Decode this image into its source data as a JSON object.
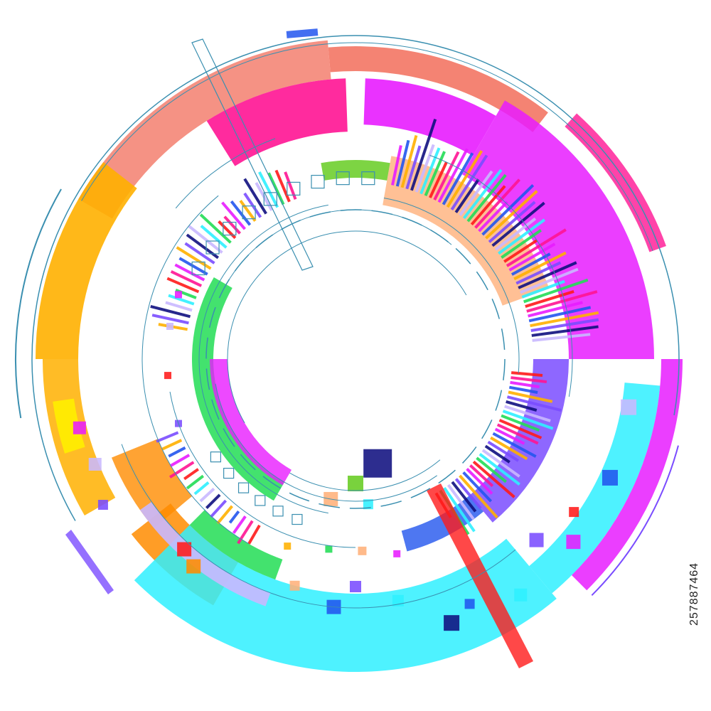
{
  "image": {
    "stock_id": "257887464",
    "subject": "circular-tech-hud",
    "background": "#ffffff",
    "palette": {
      "salmon": "#f26d5b",
      "magenta": "#e81cff",
      "pink": "#ff1493",
      "orange": "#ff8c00",
      "amber": "#ffb000",
      "yellow": "#ffee00",
      "cyan": "#2ff0ff",
      "teal": "#1e9bb0",
      "green": "#22dd55",
      "lime": "#66cc22",
      "violet": "#7a4cff",
      "blue": "#2255ee",
      "navy": "#101080",
      "red": "#ff1a1a",
      "peach": "#ffb07a",
      "lavender": "#c9b8ff",
      "line": "#3a8fb0"
    }
  }
}
